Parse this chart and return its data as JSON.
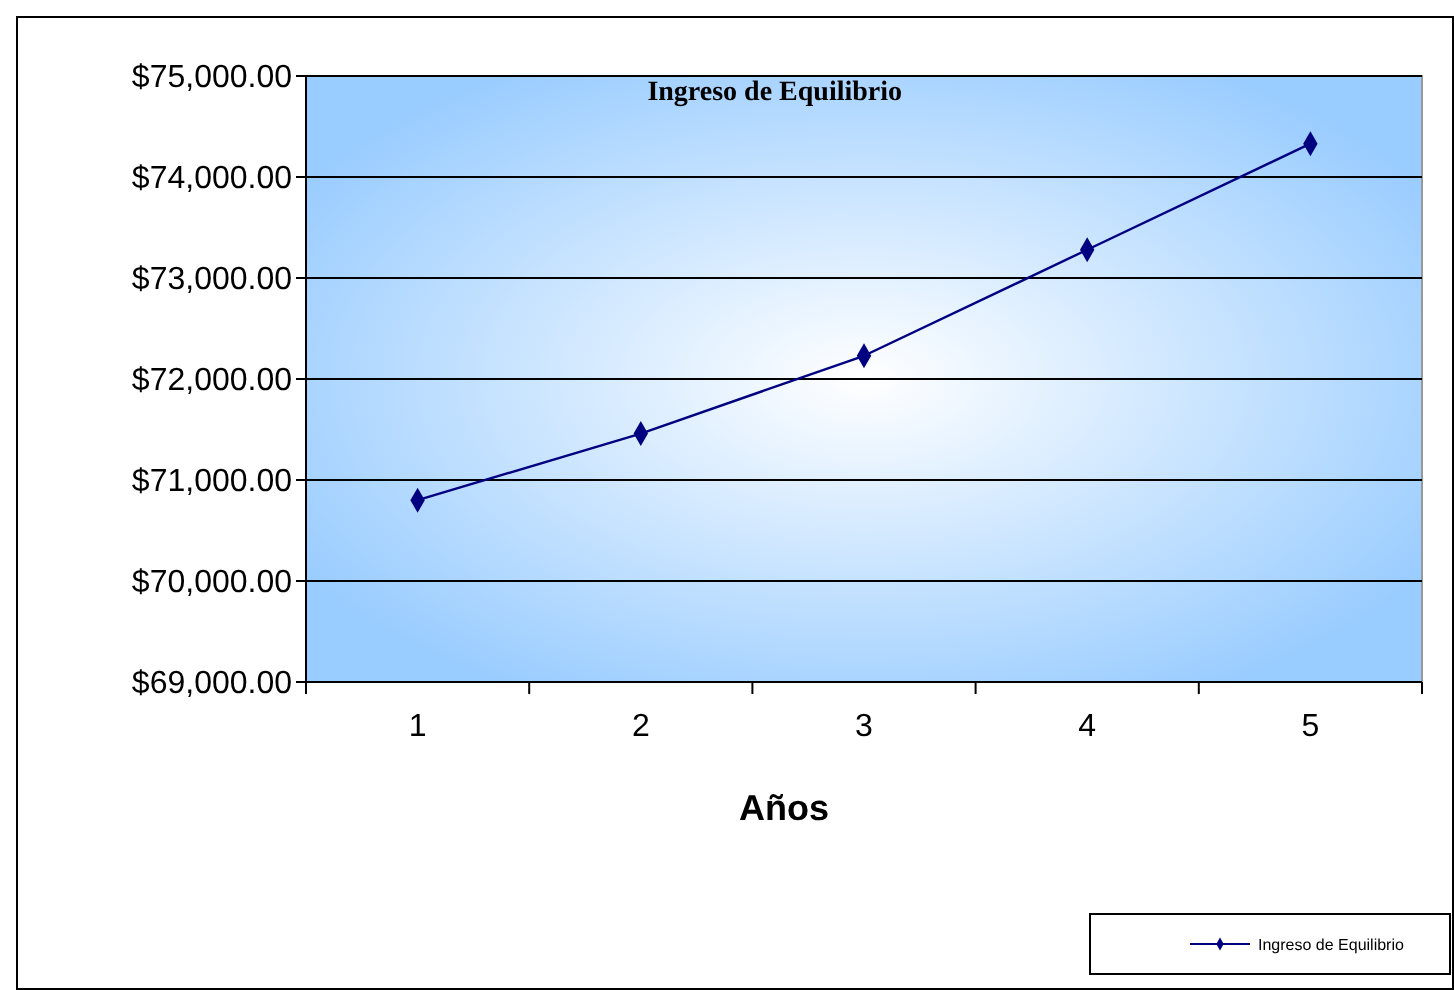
{
  "chart_data": {
    "type": "line",
    "title": "Ingreso de Equilibrio",
    "xlabel": "Años",
    "categories": [
      "1",
      "2",
      "3",
      "4",
      "5"
    ],
    "series": [
      {
        "name": "Ingreso de Equilibrio",
        "color": "#000080",
        "values": [
          70800,
          71460,
          72230,
          73280,
          74330
        ]
      }
    ],
    "ylim": [
      69000,
      75000
    ],
    "yticks": [
      {
        "value": 69000,
        "label": "$69,000.00"
      },
      {
        "value": 70000,
        "label": "$70,000.00"
      },
      {
        "value": 71000,
        "label": "$71,000.00"
      },
      {
        "value": 72000,
        "label": "$72,000.00"
      },
      {
        "value": 73000,
        "label": "$73,000.00"
      },
      {
        "value": 74000,
        "label": "$74,000.00"
      },
      {
        "value": 75000,
        "label": "$75,000.00"
      }
    ],
    "grid": "y",
    "legend": "bottom right",
    "marker": "diamond",
    "line_style": "solid"
  }
}
